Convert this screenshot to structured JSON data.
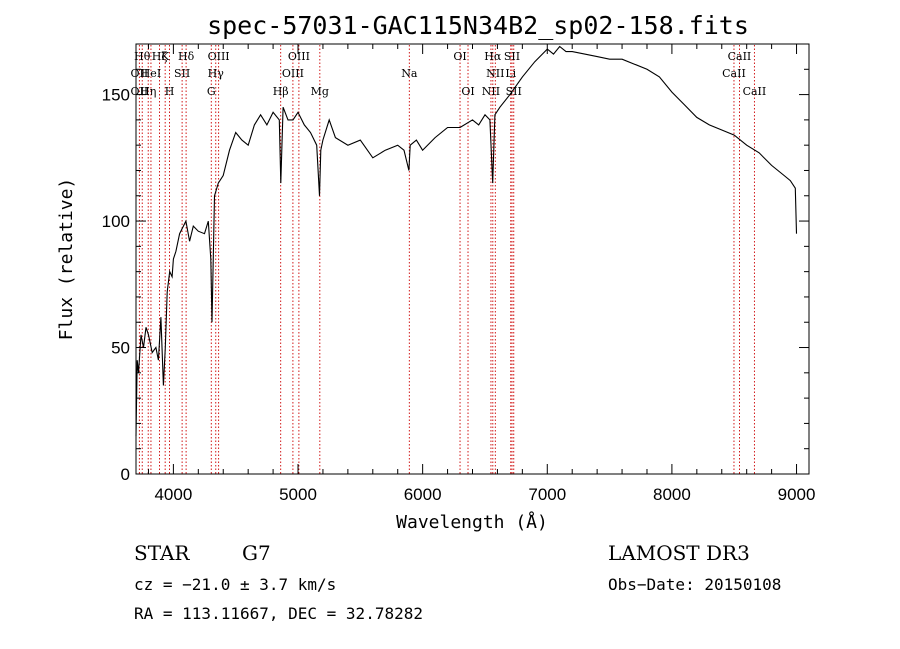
{
  "chart_data": {
    "type": "line",
    "title": "spec-57031-GAC115N34B2_sp02-158.fits",
    "xlabel": "Wavelength (Å)",
    "ylabel": "Flux (relative)",
    "xlim": [
      3700,
      9100
    ],
    "ylim": [
      0,
      170
    ],
    "xticks": [
      4000,
      5000,
      6000,
      7000,
      8000,
      9000
    ],
    "yticks": [
      0,
      50,
      100,
      150
    ],
    "grid": false,
    "series": [
      {
        "x": [
          3700,
          3710,
          3720,
          3740,
          3760,
          3780,
          3800,
          3830,
          3860,
          3880,
          3900,
          3920,
          3935,
          3950,
          3970,
          3990,
          4000,
          4020,
          4050,
          4080,
          4100,
          4130,
          4160,
          4200,
          4250,
          4280,
          4300,
          4310,
          4330,
          4360,
          4400,
          4450,
          4500,
          4550,
          4600,
          4650,
          4700,
          4750,
          4800,
          4850,
          4862,
          4880,
          4920,
          4960,
          5000,
          5050,
          5100,
          5150,
          5172,
          5183,
          5200,
          5250,
          5300,
          5400,
          5500,
          5600,
          5700,
          5800,
          5850,
          5890,
          5900,
          5950,
          6000,
          6100,
          6200,
          6300,
          6400,
          6450,
          6500,
          6540,
          6562,
          6580,
          6620,
          6700,
          6800,
          6900,
          7000,
          7050,
          7100,
          7150,
          7200,
          7300,
          7400,
          7500,
          7600,
          7700,
          7800,
          7900,
          8000,
          8100,
          8200,
          8300,
          8400,
          8500,
          8600,
          8700,
          8800,
          8900,
          8950,
          8990,
          9000
        ],
        "y": [
          15,
          45,
          40,
          55,
          50,
          58,
          55,
          48,
          50,
          45,
          62,
          35,
          50,
          72,
          80,
          78,
          85,
          88,
          95,
          98,
          100,
          92,
          98,
          96,
          95,
          100,
          85,
          60,
          110,
          115,
          118,
          128,
          135,
          132,
          130,
          138,
          142,
          138,
          143,
          140,
          115,
          145,
          140,
          140,
          143,
          138,
          135,
          130,
          110,
          128,
          132,
          140,
          133,
          130,
          132,
          125,
          128,
          130,
          128,
          120,
          130,
          132,
          128,
          133,
          137,
          137,
          140,
          138,
          142,
          140,
          115,
          142,
          145,
          150,
          157,
          163,
          168,
          166,
          169,
          167,
          167,
          166,
          165,
          164,
          164,
          162,
          160,
          157,
          151,
          146,
          141,
          138,
          136,
          134,
          130,
          127,
          122,
          118,
          116,
          113,
          95
        ]
      }
    ],
    "lines": [
      {
        "wave": 3727,
        "labels": [
          "OII",
          "OII"
        ],
        "rows": [
          1,
          2
        ]
      },
      {
        "wave": 3750,
        "labels": [
          "Hθ"
        ],
        "rows": [
          0
        ]
      },
      {
        "wave": 3798,
        "labels": [
          "Hη"
        ],
        "rows": [
          2
        ]
      },
      {
        "wave": 3820,
        "labels": [
          "HeI"
        ],
        "rows": [
          1
        ]
      },
      {
        "wave": 3889,
        "labels": [
          "Hζ"
        ],
        "rows": [
          0
        ]
      },
      {
        "wave": 3934,
        "labels": [
          "K"
        ],
        "rows": [
          0
        ]
      },
      {
        "wave": 3969,
        "labels": [
          "H"
        ],
        "rows": [
          2
        ]
      },
      {
        "wave": 4070,
        "labels": [
          "SII"
        ],
        "rows": [
          1
        ]
      },
      {
        "wave": 4102,
        "labels": [
          "Hδ"
        ],
        "rows": [
          0
        ]
      },
      {
        "wave": 4304,
        "labels": [
          "G"
        ],
        "rows": [
          2
        ]
      },
      {
        "wave": 4340,
        "labels": [
          "Hγ"
        ],
        "rows": [
          1
        ]
      },
      {
        "wave": 4363,
        "labels": [
          "OIII"
        ],
        "rows": [
          0
        ]
      },
      {
        "wave": 4861,
        "labels": [
          "Hβ"
        ],
        "rows": [
          2
        ]
      },
      {
        "wave": 4959,
        "labels": [
          "OIII"
        ],
        "rows": [
          1
        ]
      },
      {
        "wave": 5007,
        "labels": [
          "OIII"
        ],
        "rows": [
          0
        ]
      },
      {
        "wave": 5175,
        "labels": [
          "Mg"
        ],
        "rows": [
          2
        ]
      },
      {
        "wave": 5893,
        "labels": [
          "Na"
        ],
        "rows": [
          1
        ]
      },
      {
        "wave": 6300,
        "labels": [
          "OI"
        ],
        "rows": [
          0
        ]
      },
      {
        "wave": 6364,
        "labels": [
          "OI"
        ],
        "rows": [
          2
        ]
      },
      {
        "wave": 6548,
        "labels": [
          "NII"
        ],
        "rows": [
          2
        ]
      },
      {
        "wave": 6563,
        "labels": [
          "Hα"
        ],
        "rows": [
          0
        ]
      },
      {
        "wave": 6583,
        "labels": [
          "NII"
        ],
        "rows": [
          1
        ]
      },
      {
        "wave": 6707,
        "labels": [
          "Li"
        ],
        "rows": [
          1
        ]
      },
      {
        "wave": 6717,
        "labels": [
          "SII"
        ],
        "rows": [
          0
        ]
      },
      {
        "wave": 6731,
        "labels": [
          "SII"
        ],
        "rows": [
          2
        ]
      },
      {
        "wave": 8498,
        "labels": [
          "CaII"
        ],
        "rows": [
          1
        ]
      },
      {
        "wave": 8542,
        "labels": [
          "CaII"
        ],
        "rows": [
          0
        ]
      },
      {
        "wave": 8662,
        "labels": [
          "CaII"
        ],
        "rows": [
          2
        ]
      }
    ]
  },
  "info": {
    "class": "STAR",
    "subclass": "G7",
    "cz": "cz = −21.0 ± 3.7 km/s",
    "radec": "RA = 113.11667, DEC =  32.78282",
    "survey": "LAMOST DR3",
    "obsdate": "Obs−Date: 20150108"
  }
}
